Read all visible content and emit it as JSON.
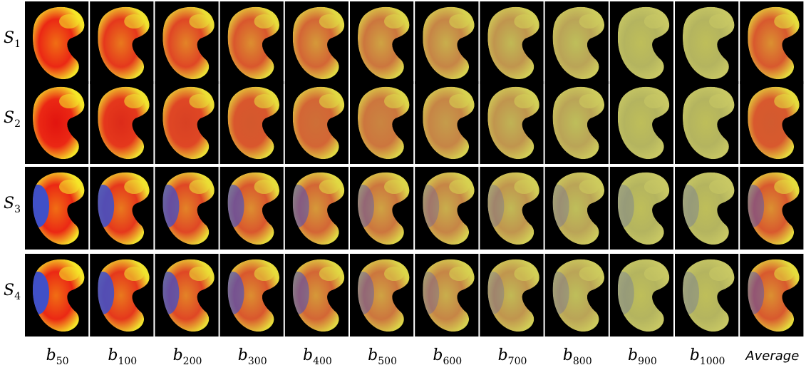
{
  "rows": [
    {
      "base": "S",
      "sub": "1"
    },
    {
      "base": "S",
      "sub": "2"
    },
    {
      "base": "S",
      "sub": "3"
    },
    {
      "base": "S",
      "sub": "4"
    }
  ],
  "columns": [
    {
      "base": "b",
      "sub": "50"
    },
    {
      "base": "b",
      "sub": "100"
    },
    {
      "base": "b",
      "sub": "200"
    },
    {
      "base": "b",
      "sub": "300"
    },
    {
      "base": "b",
      "sub": "400"
    },
    {
      "base": "b",
      "sub": "500"
    },
    {
      "base": "b",
      "sub": "600"
    },
    {
      "base": "b",
      "sub": "700"
    },
    {
      "base": "b",
      "sub": "800"
    },
    {
      "base": "b",
      "sub": "900"
    },
    {
      "base": "b",
      "sub": "1000"
    },
    {
      "base": "Average"
    }
  ]
}
